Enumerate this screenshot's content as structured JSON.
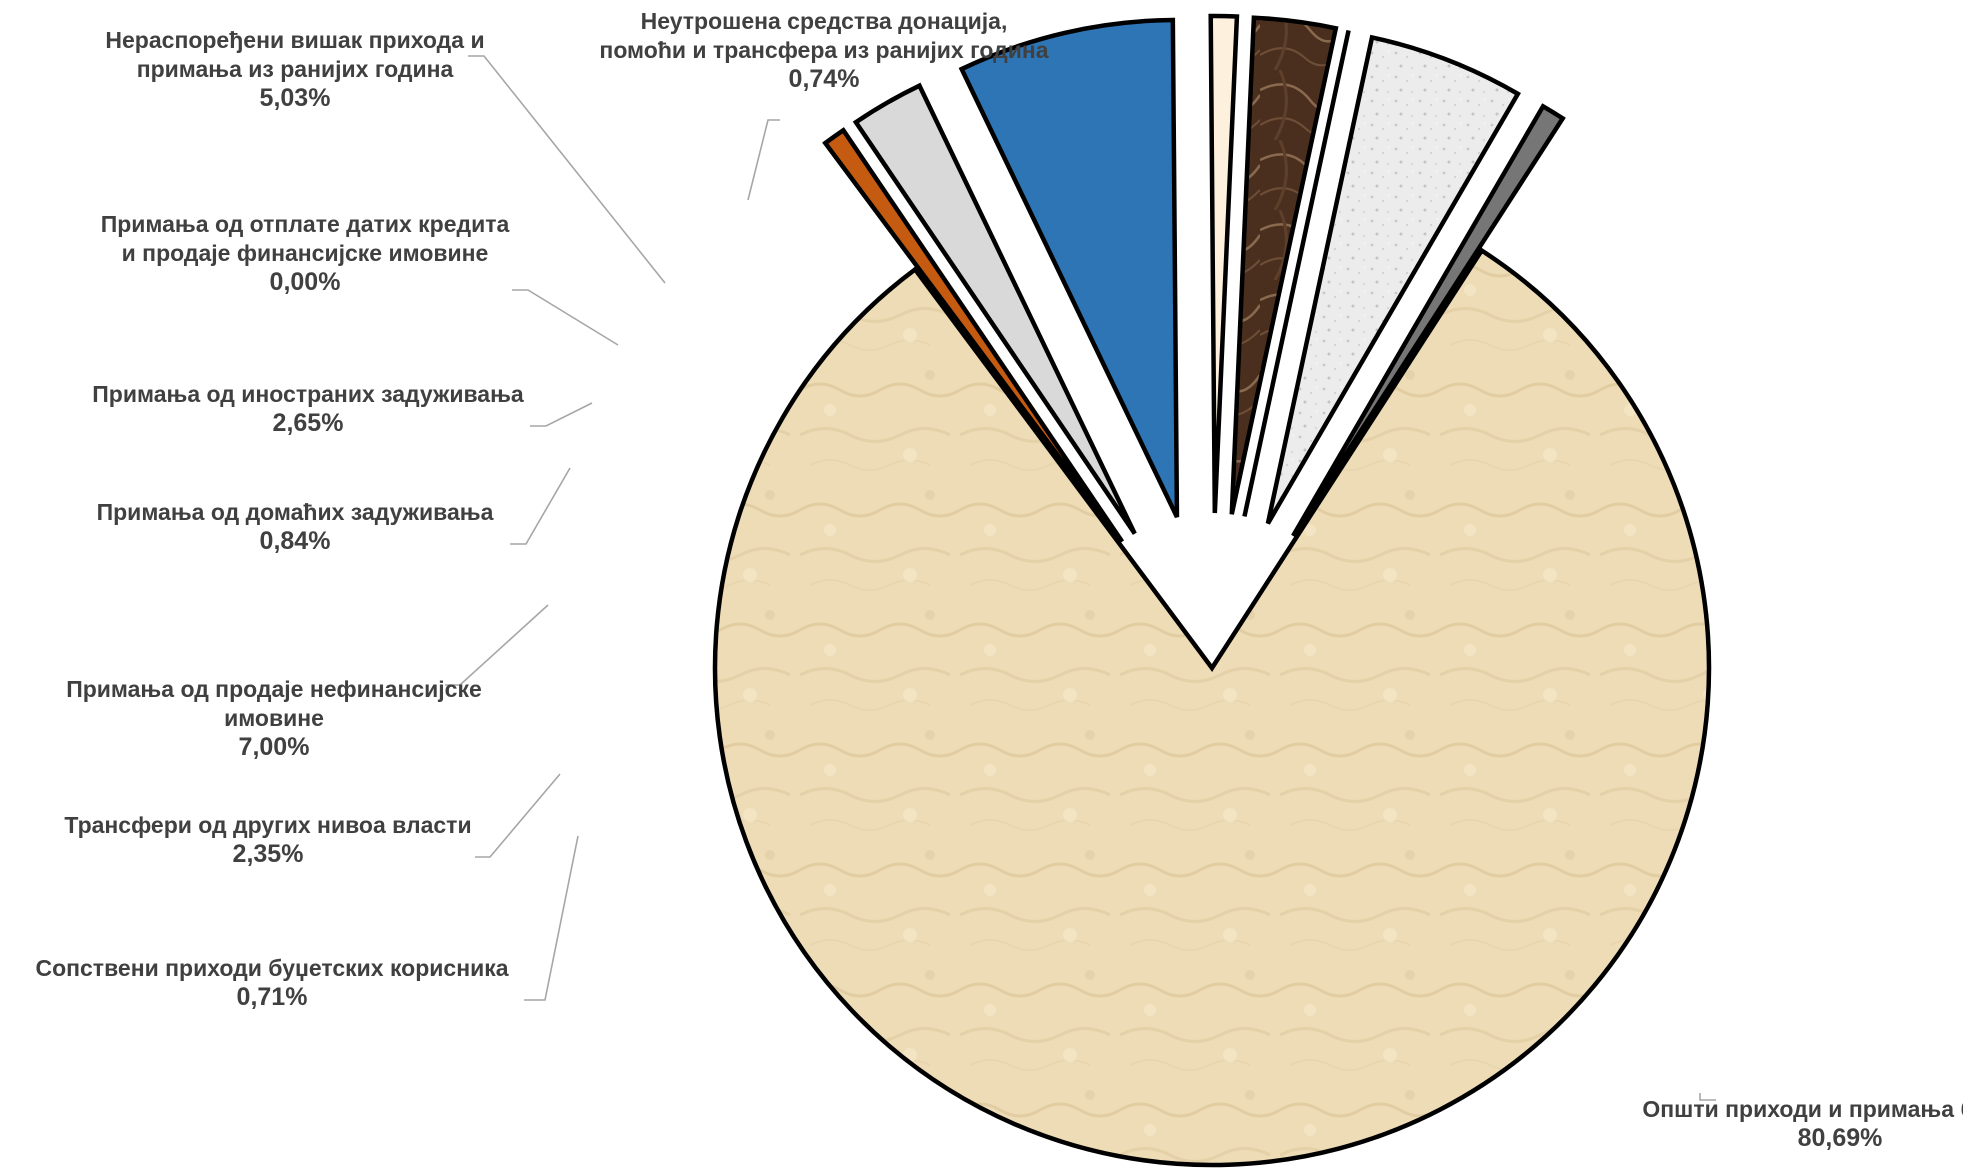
{
  "chart_data": {
    "type": "pie",
    "title": "",
    "slices": [
      {
        "lines": [
          "Општи приходи и примања буџета"
        ],
        "value_label": "80,69%",
        "value": 80.69,
        "color": "#eedcb6"
      },
      {
        "lines": [
          "Сопствени приходи буџетских корисника"
        ],
        "value_label": "0,71%",
        "value": 0.71,
        "color": "#c55a11"
      },
      {
        "lines": [
          "Трансфери од других нивоа власти"
        ],
        "value_label": "2,35%",
        "value": 2.35,
        "color": "#d9d9d9"
      },
      {
        "lines": [
          "Примања од продаје нефинансијске",
          "имовине"
        ],
        "value_label": "7,00%",
        "value": 7.0,
        "color": "#2e75b6"
      },
      {
        "lines": [
          "Примања од домаћих задуживања"
        ],
        "value_label": "0,84%",
        "value": 0.84,
        "color": "#fdf0dc"
      },
      {
        "lines": [
          "Примања од иностраних задуживања"
        ],
        "value_label": "2,65%",
        "value": 2.65,
        "color": "#4a2f1f"
      },
      {
        "lines": [
          "Примања од отплате датих кредита",
          "и продаје финансијске имовине"
        ],
        "value_label": "0,00%",
        "value": 0.0,
        "color": "#ffffff"
      },
      {
        "lines": [
          "Нераспоређени вишак прихода и",
          "примања из ранијих година"
        ],
        "value_label": "5,03%",
        "value": 5.03,
        "color": "#e9e9e9"
      },
      {
        "lines": [
          "Неутрошена средства донација,",
          "помоћи и трансфера из ранијих година"
        ],
        "value_label": "0,74%",
        "value": 0.74,
        "color": "#767676"
      }
    ]
  }
}
